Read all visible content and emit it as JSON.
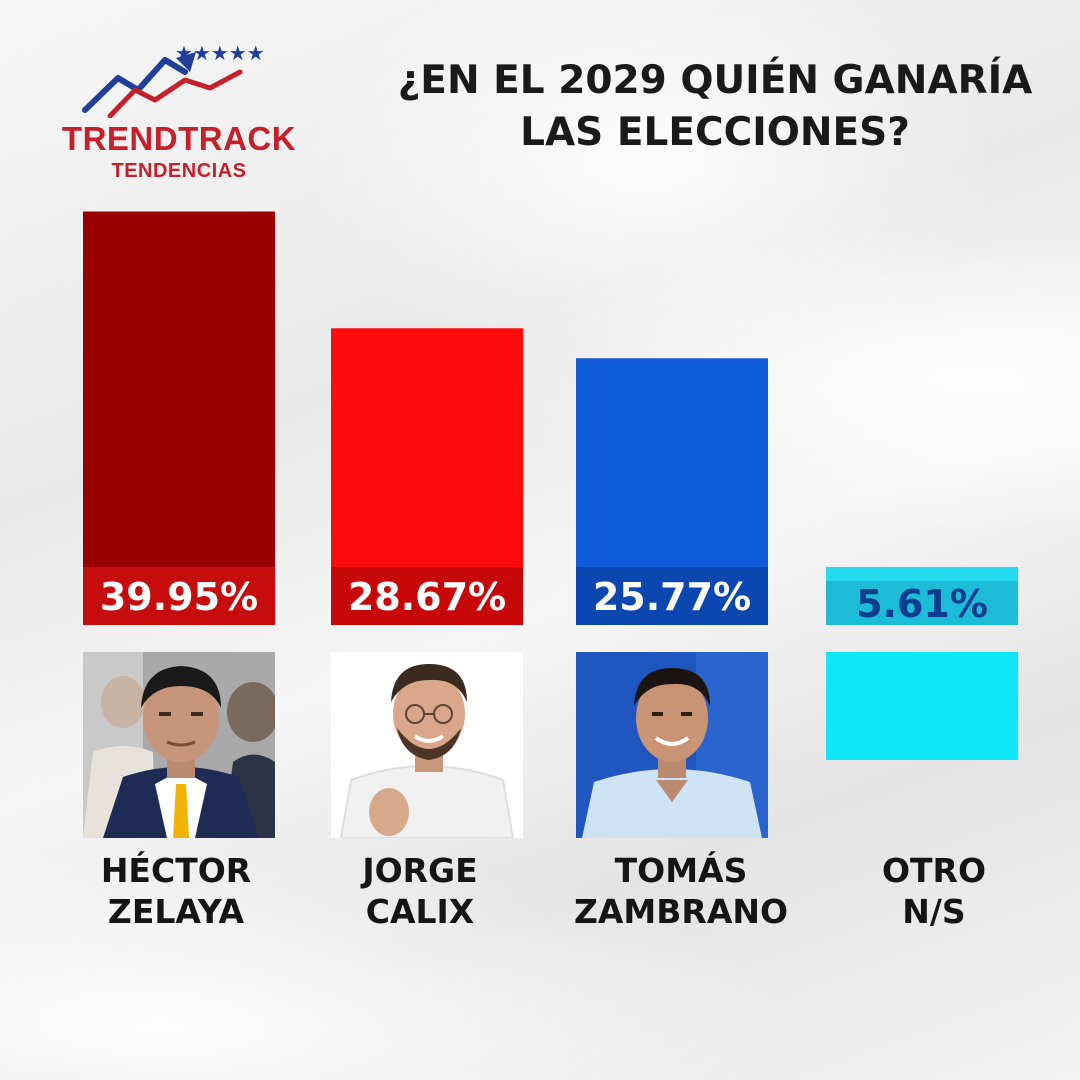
{
  "brand": {
    "name": "TRENDTRACK",
    "subtitle": "TENDENCIAS",
    "stars": "★★★★★",
    "icon": "trend-arrow-icon"
  },
  "question": {
    "line1": "¿EN EL 2029 QUIÉN GANARÍA",
    "line2": "LAS ELECCIONES?"
  },
  "chart_data": {
    "type": "bar",
    "title": "¿EN EL 2029 QUIÉN GANARÍA LAS ELECCIONES?",
    "xlabel": "",
    "ylabel": "",
    "categories": [
      "HÉCTOR ZELAYA",
      "JORGE CALIX",
      "TOMÁS ZAMBRANO",
      "OTRO N/S"
    ],
    "values": [
      39.95,
      28.67,
      25.77,
      5.61
    ],
    "value_labels": [
      "39.95%",
      "28.67%",
      "25.77%",
      "5.61%"
    ],
    "unit": "%",
    "colors": [
      "#990100",
      "#ff0a0a",
      "#0f5ad6",
      "#24dbf0"
    ],
    "label_band_colors": [
      "#c60c0c",
      "#c80808",
      "#0b47b0",
      "#1bbcd8"
    ],
    "label_text_colors": [
      "#ffffff",
      "#ffffff",
      "#ffffff",
      "#0b3d91"
    ],
    "ylim": [
      0,
      40
    ],
    "grid": false,
    "legend": "none"
  },
  "candidates": [
    {
      "line1": "HÉCTOR",
      "line2": "ZELAYA",
      "photo": "portrait-hector-zelaya",
      "photo_bg": "#a9a9a9",
      "shirt": "#ffffff",
      "jacket": "#1e2c55",
      "tie": "#f0b400"
    },
    {
      "line1": "JORGE",
      "line2": "CALIX",
      "photo": "portrait-jorge-calix",
      "photo_bg": "#ffffff",
      "shirt": "#f1f1f1"
    },
    {
      "line1": "TOMÁS",
      "line2": "ZAMBRANO",
      "photo": "portrait-tomas-zambrano",
      "photo_bg": "#1f56c0",
      "shirt": "#cfe3f6"
    },
    {
      "line1": "OTRO",
      "line2": "N/S",
      "photo": "swatch-otro",
      "photo_bg": "#0fe7f8"
    }
  ]
}
